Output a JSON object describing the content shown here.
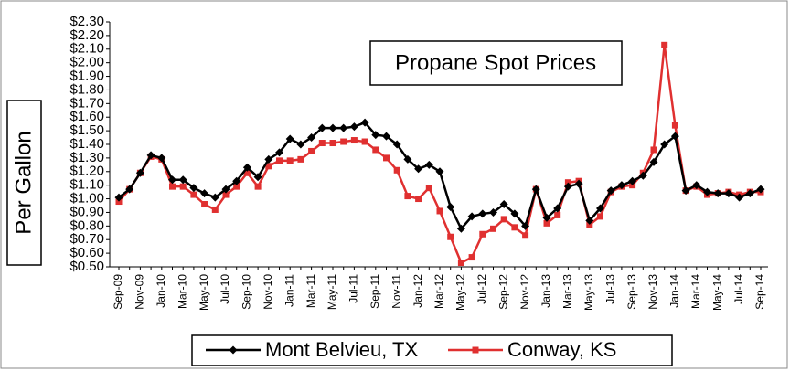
{
  "chart_data": {
    "type": "line",
    "title": "Propane Spot Prices",
    "y_label": "Per Gallon",
    "categories": [
      "Sep-09",
      null,
      "Nov-09",
      null,
      "Jan-10",
      null,
      "Mar-10",
      null,
      "May-10",
      null,
      "Jul-10",
      null,
      "Sep-10",
      null,
      "Nov-10",
      null,
      "Jan-11",
      null,
      "Mar-11",
      null,
      "May-11",
      null,
      "Jul-11",
      null,
      "Sep-11",
      null,
      "Nov-11",
      null,
      "Jan-12",
      null,
      "Mar-12",
      null,
      "May-12",
      null,
      "Jul-12",
      null,
      "Sep-12",
      null,
      "Nov-12",
      null,
      "Jan-13",
      null,
      "Mar-13",
      null,
      "May-13",
      null,
      "Jul-13",
      null,
      "Sep-13",
      null,
      "Nov-13",
      null,
      "Jan-14",
      null,
      "Mar-14",
      null,
      "May-14",
      null,
      "Jul-14",
      null,
      "Sep-14"
    ],
    "series": [
      {
        "name": "Mont Belvieu, TX",
        "color": "#000000",
        "marker": "diamond",
        "values": [
          1.01,
          1.07,
          1.19,
          1.32,
          1.3,
          1.14,
          1.14,
          1.08,
          1.04,
          1.01,
          1.07,
          1.13,
          1.23,
          1.16,
          1.29,
          1.34,
          1.44,
          1.4,
          1.45,
          1.52,
          1.52,
          1.52,
          1.53,
          1.56,
          1.47,
          1.46,
          1.4,
          1.29,
          1.22,
          1.25,
          1.2,
          0.94,
          0.78,
          0.87,
          0.89,
          0.9,
          0.96,
          0.89,
          0.8,
          1.07,
          0.86,
          0.93,
          1.09,
          1.11,
          0.84,
          0.93,
          1.06,
          1.1,
          1.13,
          1.17,
          1.27,
          1.4,
          1.46,
          1.06,
          1.1,
          1.05,
          1.04,
          1.04,
          1.01,
          1.04,
          1.07
        ]
      },
      {
        "name": "Conway, KS",
        "color": "#e03030",
        "marker": "square",
        "values": [
          0.98,
          1.07,
          1.19,
          1.31,
          1.29,
          1.09,
          1.09,
          1.03,
          0.96,
          0.92,
          1.03,
          1.09,
          1.19,
          1.09,
          1.24,
          1.28,
          1.28,
          1.29,
          1.35,
          1.41,
          1.41,
          1.42,
          1.43,
          1.42,
          1.36,
          1.3,
          1.21,
          1.02,
          1.0,
          1.08,
          0.91,
          0.72,
          0.53,
          0.57,
          0.74,
          0.78,
          0.85,
          0.79,
          0.73,
          1.07,
          0.82,
          0.88,
          1.12,
          1.13,
          0.81,
          0.87,
          1.05,
          1.09,
          1.1,
          1.19,
          1.36,
          2.13,
          1.54,
          1.06,
          1.09,
          1.03,
          1.04,
          1.05,
          1.03,
          1.05,
          1.05
        ]
      }
    ],
    "ylim": [
      0.5,
      2.3
    ],
    "yticks": [
      {
        "value": 0.5,
        "label": "$0.50"
      },
      {
        "value": 0.6,
        "label": "$0.60"
      },
      {
        "value": 0.7,
        "label": "$0.70"
      },
      {
        "value": 0.8,
        "label": "$0.80"
      },
      {
        "value": 0.9,
        "label": "$0.90"
      },
      {
        "value": 1.0,
        "label": "$1.00"
      },
      {
        "value": 1.1,
        "label": "$1.10"
      },
      {
        "value": 1.2,
        "label": "$1.20"
      },
      {
        "value": 1.3,
        "label": "$1.30"
      },
      {
        "value": 1.4,
        "label": "$1.40"
      },
      {
        "value": 1.5,
        "label": "$1.50"
      },
      {
        "value": 1.6,
        "label": "$1.60"
      },
      {
        "value": 1.7,
        "label": "$1.70"
      },
      {
        "value": 1.8,
        "label": "$1.80"
      },
      {
        "value": 1.9,
        "label": "$1.90"
      },
      {
        "value": 2.0,
        "label": "$2.00"
      },
      {
        "value": 2.1,
        "label": "$2.10"
      },
      {
        "value": 2.2,
        "label": "$2.20"
      },
      {
        "value": 2.3,
        "label": "$2.30"
      }
    ],
    "grid": false,
    "legend": "bottom"
  }
}
